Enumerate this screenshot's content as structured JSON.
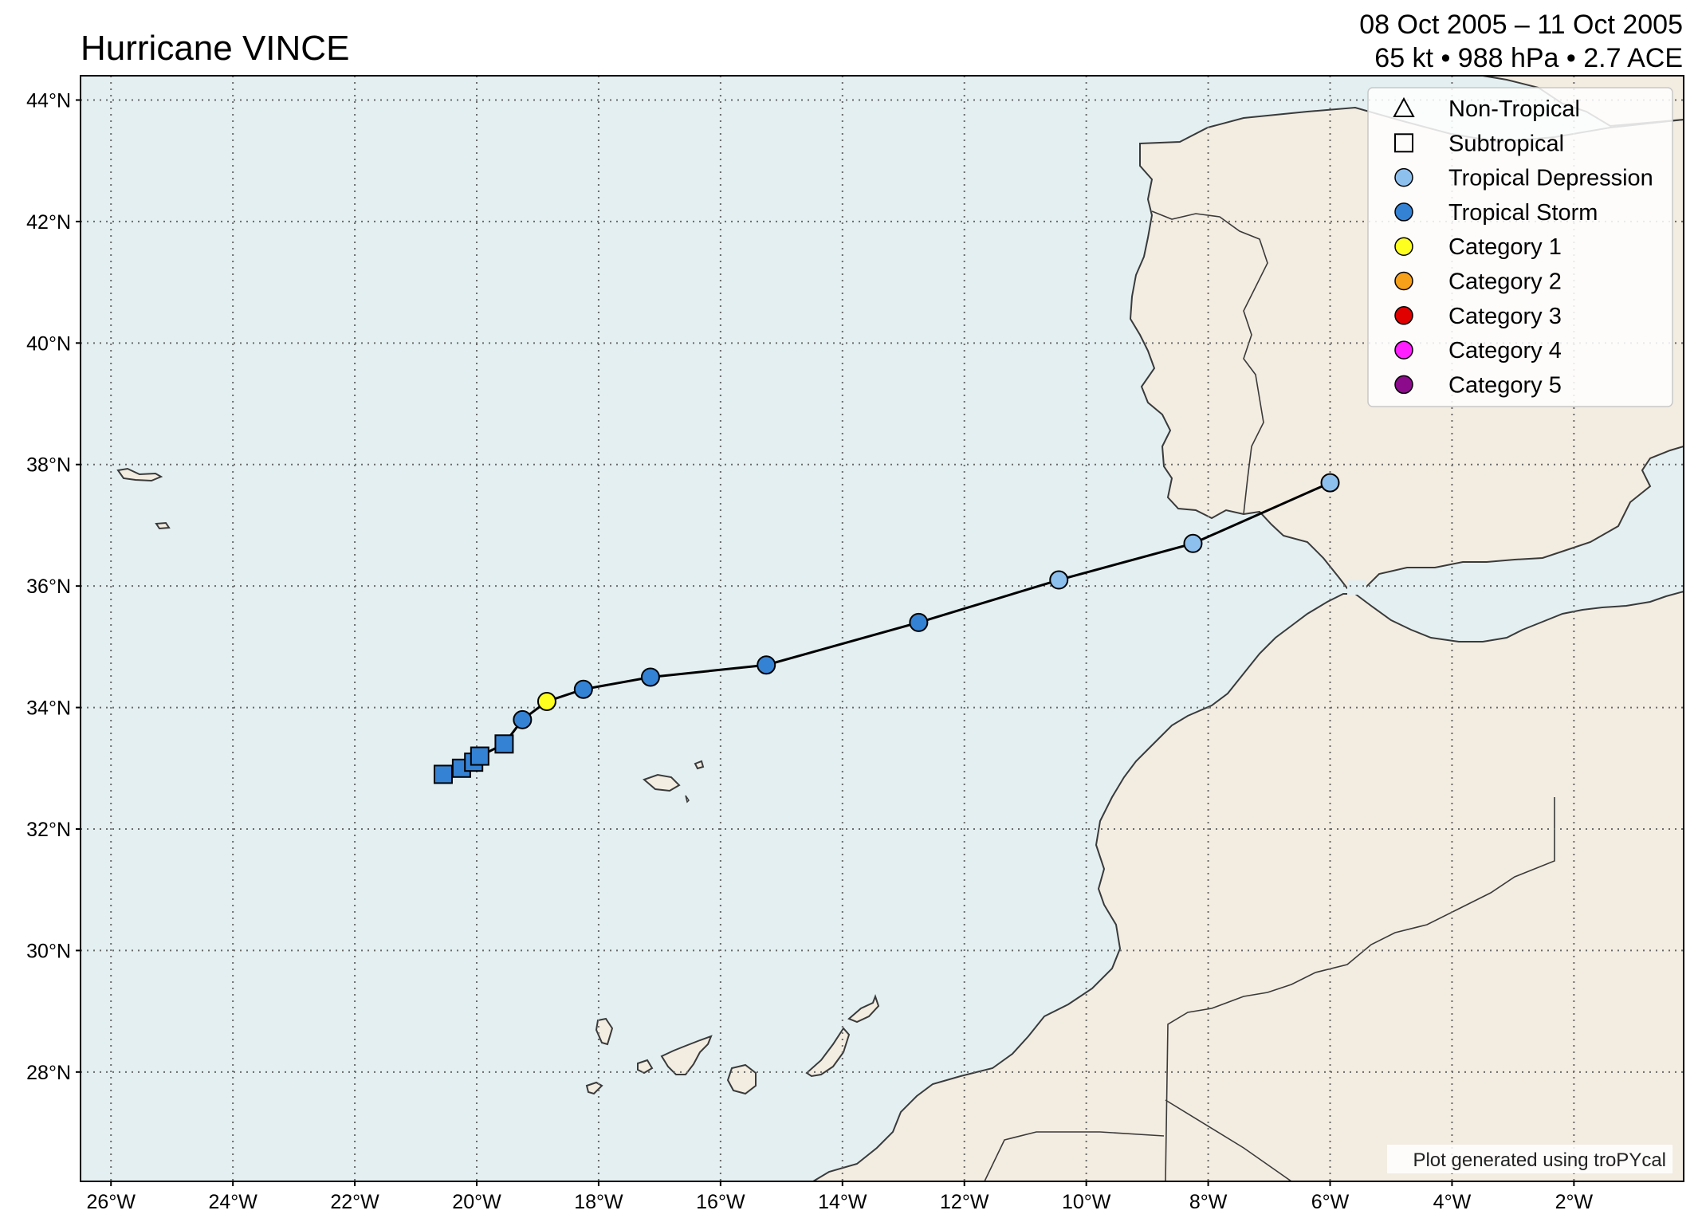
{
  "title": "Hurricane VINCE",
  "date_range": "08 Oct 2005 – 11 Oct 2005",
  "summary": "65 kt • 988 hPa • 2.7 ACE",
  "credit": "Plot generated using troPYcal",
  "colors": {
    "ocean": "#e3eff1",
    "land": "#f3ece1",
    "coast": "#3a3a3a",
    "grid": "#6a6a6a",
    "track": "#000000"
  },
  "map_extent": {
    "lon": [
      -26.5,
      -0.2
    ],
    "lat": [
      26.2,
      44.4
    ]
  },
  "lon_ticks": [
    {
      "value": -26,
      "label": "26°W"
    },
    {
      "value": -24,
      "label": "24°W"
    },
    {
      "value": -22,
      "label": "22°W"
    },
    {
      "value": -20,
      "label": "20°W"
    },
    {
      "value": -18,
      "label": "18°W"
    },
    {
      "value": -16,
      "label": "16°W"
    },
    {
      "value": -14,
      "label": "14°W"
    },
    {
      "value": -12,
      "label": "12°W"
    },
    {
      "value": -10,
      "label": "10°W"
    },
    {
      "value": -8,
      "label": "8°W"
    },
    {
      "value": -6,
      "label": "6°W"
    },
    {
      "value": -4,
      "label": "4°W"
    },
    {
      "value": -2,
      "label": "2°W"
    }
  ],
  "lat_ticks": [
    {
      "value": 44,
      "label": "44°N"
    },
    {
      "value": 42,
      "label": "42°N"
    },
    {
      "value": 40,
      "label": "40°N"
    },
    {
      "value": 38,
      "label": "38°N"
    },
    {
      "value": 36,
      "label": "36°N"
    },
    {
      "value": 34,
      "label": "34°N"
    },
    {
      "value": 32,
      "label": "32°N"
    },
    {
      "value": 30,
      "label": "30°N"
    },
    {
      "value": 28,
      "label": "28°N"
    }
  ],
  "legend": [
    {
      "label": "Non-Tropical",
      "shape": "triangle",
      "color": "none"
    },
    {
      "label": "Subtropical",
      "shape": "square",
      "color": "none"
    },
    {
      "label": "Tropical Depression",
      "shape": "circle",
      "color": "#8ec0ee"
    },
    {
      "label": "Tropical Storm",
      "shape": "circle",
      "color": "#3482d4"
    },
    {
      "label": "Category 1",
      "shape": "circle",
      "color": "#ffff1f"
    },
    {
      "label": "Category 2",
      "shape": "circle",
      "color": "#f7a01a"
    },
    {
      "label": "Category 3",
      "shape": "circle",
      "color": "#e00000"
    },
    {
      "label": "Category 4",
      "shape": "circle",
      "color": "#ff1fff"
    },
    {
      "label": "Category 5",
      "shape": "circle",
      "color": "#8c0a8c"
    }
  ],
  "track": [
    {
      "lon": -20.55,
      "lat": 32.9,
      "type": "subtropical",
      "category": "Tropical Storm"
    },
    {
      "lon": -20.25,
      "lat": 33.0,
      "type": "subtropical",
      "category": "Tropical Storm"
    },
    {
      "lon": -20.05,
      "lat": 33.1,
      "type": "subtropical",
      "category": "Tropical Storm"
    },
    {
      "lon": -19.95,
      "lat": 33.2,
      "type": "subtropical",
      "category": "Tropical Storm"
    },
    {
      "lon": -19.55,
      "lat": 33.4,
      "type": "subtropical",
      "category": "Tropical Storm"
    },
    {
      "lon": -19.25,
      "lat": 33.8,
      "type": "tropical",
      "category": "Tropical Storm"
    },
    {
      "lon": -18.85,
      "lat": 34.1,
      "type": "tropical",
      "category": "Category 1"
    },
    {
      "lon": -18.25,
      "lat": 34.3,
      "type": "tropical",
      "category": "Tropical Storm"
    },
    {
      "lon": -17.15,
      "lat": 34.5,
      "type": "tropical",
      "category": "Tropical Storm"
    },
    {
      "lon": -15.25,
      "lat": 34.7,
      "type": "tropical",
      "category": "Tropical Storm"
    },
    {
      "lon": -12.75,
      "lat": 35.4,
      "type": "tropical",
      "category": "Tropical Storm"
    },
    {
      "lon": -10.45,
      "lat": 36.1,
      "type": "tropical",
      "category": "Tropical Depression"
    },
    {
      "lon": -8.25,
      "lat": 36.7,
      "type": "tropical",
      "category": "Tropical Depression"
    },
    {
      "lon": -6.0,
      "lat": 37.7,
      "type": "tropical",
      "category": "Tropical Depression"
    }
  ]
}
